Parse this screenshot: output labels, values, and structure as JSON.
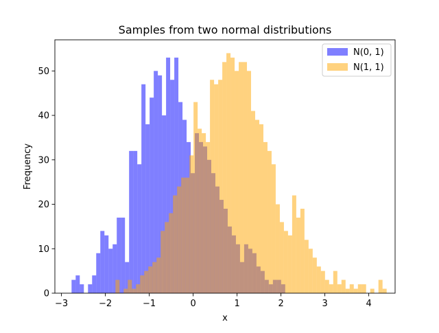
{
  "chart_data": {
    "type": "bar",
    "title": "Samples from two normal distributions",
    "xlabel": "x",
    "ylabel": "Frequency",
    "xlim": [
      -3.15,
      4.6
    ],
    "ylim": [
      0,
      57
    ],
    "xticks": [
      -3,
      -2,
      -1,
      0,
      1,
      2,
      3,
      4
    ],
    "xtick_labels": [
      "−3",
      "−2",
      "−1",
      "0",
      "1",
      "2",
      "3",
      "4"
    ],
    "yticks": [
      0,
      10,
      20,
      30,
      40,
      50
    ],
    "ytick_labels": [
      "0",
      "10",
      "20",
      "30",
      "40",
      "50"
    ],
    "legend_placement": "top-right",
    "series": [
      {
        "name": "N(0, 1)",
        "color": "#0000ff",
        "alpha": 0.5,
        "bin_start": -2.77,
        "bin_width": 0.0936,
        "counts": [
          3,
          4,
          2,
          0,
          2,
          4,
          9,
          14,
          13,
          10,
          11,
          17,
          17,
          7,
          32,
          32,
          29,
          47,
          38,
          44,
          50,
          49,
          40,
          53,
          48,
          53,
          43,
          39,
          34,
          27,
          36,
          34,
          33,
          30,
          27,
          24,
          21,
          19,
          15,
          13,
          11,
          7,
          11,
          10,
          9,
          6,
          5,
          3,
          2,
          3,
          3,
          2,
          0
        ]
      },
      {
        "name": "N(1, 1)",
        "color": "#ffa500",
        "alpha": 0.5,
        "bin_start": -1.77,
        "bin_width": 0.0936,
        "counts": [
          3,
          0,
          1,
          3,
          1,
          2,
          4,
          5,
          6,
          7,
          8,
          14,
          16,
          18,
          22,
          24,
          26,
          26,
          31,
          43,
          37,
          36,
          34,
          48,
          47,
          48,
          52,
          54,
          53,
          50,
          52,
          52,
          50,
          41,
          39,
          38,
          34,
          32,
          29,
          20,
          16,
          14,
          13,
          22,
          17,
          19,
          12,
          10,
          8,
          6,
          5,
          3,
          2,
          5,
          2,
          3,
          1,
          2,
          1,
          2,
          2,
          0,
          1,
          0,
          3,
          1
        ]
      }
    ]
  }
}
